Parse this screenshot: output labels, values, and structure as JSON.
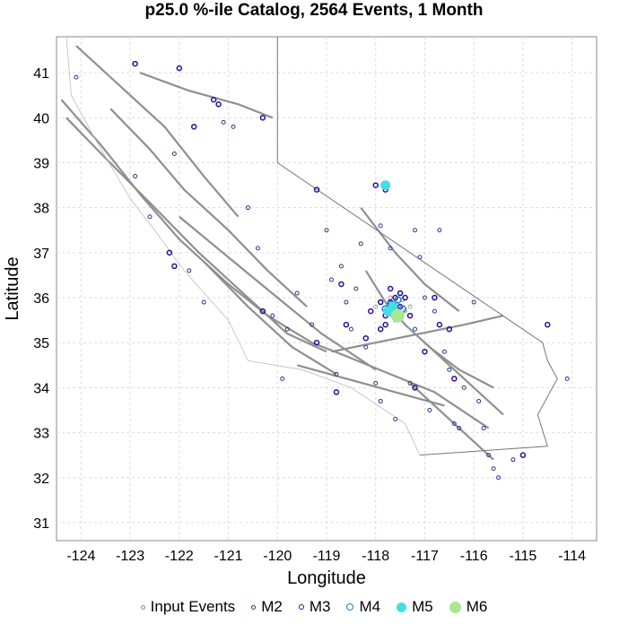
{
  "chart_data": {
    "type": "scatter",
    "title": "p25.0 %-ile Catalog, 2564 Events, 1 Month",
    "xlabel": "Longitude",
    "ylabel": "Latitude",
    "xlim": [
      -124.5,
      -113.5
    ],
    "ylim": [
      30.6,
      41.8
    ],
    "x_ticks": [
      -124,
      -123,
      -122,
      -121,
      -120,
      -119,
      -118,
      -117,
      -116,
      -115,
      -114
    ],
    "y_ticks": [
      31,
      32,
      33,
      34,
      35,
      36,
      37,
      38,
      39,
      40,
      41
    ],
    "grid": true,
    "legend_position": "bottom",
    "series": [
      {
        "name": "Input Events",
        "color": "#8a8a8a",
        "filled": false,
        "points": [
          [
            -117.7,
            35.8
          ],
          [
            -117.6,
            35.9
          ],
          [
            -117.8,
            35.7
          ],
          [
            -117.5,
            35.6
          ],
          [
            -117.65,
            35.75
          ],
          [
            -117.55,
            35.85
          ],
          [
            -117.7,
            36.0
          ],
          [
            -117.4,
            35.7
          ],
          [
            -117.9,
            35.9
          ],
          [
            -117.6,
            35.5
          ],
          [
            -117.3,
            35.8
          ],
          [
            -117.5,
            36.1
          ],
          [
            -117.75,
            35.65
          ],
          [
            -118.0,
            35.8
          ],
          [
            -117.45,
            35.95
          ]
        ]
      },
      {
        "name": "M2",
        "color": "#1f3d8c",
        "filled": false,
        "points": [
          [
            -124.1,
            40.9
          ],
          [
            -122.9,
            38.7
          ],
          [
            -122.6,
            37.8
          ],
          [
            -122.1,
            39.2
          ],
          [
            -121.5,
            35.9
          ],
          [
            -121.1,
            39.9
          ],
          [
            -120.9,
            39.8
          ],
          [
            -120.4,
            37.1
          ],
          [
            -120.1,
            35.6
          ],
          [
            -119.8,
            35.3
          ],
          [
            -119.6,
            36.1
          ],
          [
            -119.3,
            35.4
          ],
          [
            -119.0,
            37.5
          ],
          [
            -118.9,
            36.4
          ],
          [
            -118.7,
            36.7
          ],
          [
            -118.6,
            35.9
          ],
          [
            -118.4,
            36.2
          ],
          [
            -118.3,
            37.2
          ],
          [
            -118.2,
            34.9
          ],
          [
            -118.0,
            34.1
          ],
          [
            -117.9,
            37.6
          ],
          [
            -117.7,
            37.1
          ],
          [
            -117.2,
            37.5
          ],
          [
            -117.1,
            36.9
          ],
          [
            -117.0,
            36.0
          ],
          [
            -116.8,
            35.7
          ],
          [
            -116.7,
            37.5
          ],
          [
            -116.6,
            34.8
          ],
          [
            -116.5,
            34.4
          ],
          [
            -116.3,
            33.1
          ],
          [
            -116.2,
            34.0
          ],
          [
            -116.0,
            35.9
          ],
          [
            -115.9,
            33.7
          ],
          [
            -115.8,
            33.1
          ],
          [
            -115.7,
            32.5
          ],
          [
            -115.6,
            32.2
          ],
          [
            -115.5,
            32.0
          ],
          [
            -115.2,
            32.4
          ],
          [
            -114.1,
            34.2
          ],
          [
            -117.3,
            34.1
          ],
          [
            -117.6,
            33.3
          ],
          [
            -118.8,
            34.3
          ],
          [
            -120.6,
            38.0
          ],
          [
            -121.8,
            36.6
          ],
          [
            -119.9,
            34.2
          ],
          [
            -116.9,
            33.5
          ],
          [
            -117.9,
            33.7
          ],
          [
            -118.5,
            35.3
          ],
          [
            -117.2,
            35.3
          ],
          [
            -116.4,
            33.2
          ]
        ]
      },
      {
        "name": "M3",
        "color": "#2a0f9a",
        "filled": false,
        "points": [
          [
            -122.9,
            41.2
          ],
          [
            -122.0,
            41.1
          ],
          [
            -121.3,
            40.4
          ],
          [
            -121.2,
            40.3
          ],
          [
            -120.3,
            40.0
          ],
          [
            -121.7,
            39.8
          ],
          [
            -122.2,
            37.0
          ],
          [
            -122.1,
            36.7
          ],
          [
            -119.2,
            38.4
          ],
          [
            -118.0,
            38.5
          ],
          [
            -117.8,
            38.4
          ],
          [
            -117.7,
            35.9
          ],
          [
            -117.6,
            35.7
          ],
          [
            -117.8,
            35.6
          ],
          [
            -117.5,
            35.8
          ],
          [
            -117.9,
            35.9
          ],
          [
            -117.4,
            36.0
          ],
          [
            -117.7,
            36.2
          ],
          [
            -117.3,
            35.6
          ],
          [
            -118.1,
            35.7
          ],
          [
            -117.5,
            36.1
          ],
          [
            -118.2,
            35.1
          ],
          [
            -118.6,
            35.4
          ],
          [
            -120.3,
            35.7
          ],
          [
            -119.2,
            35.0
          ],
          [
            -116.8,
            36.0
          ],
          [
            -116.7,
            35.4
          ],
          [
            -116.5,
            35.3
          ],
          [
            -117.0,
            34.8
          ],
          [
            -118.7,
            36.3
          ],
          [
            -117.2,
            34.0
          ],
          [
            -116.4,
            34.2
          ],
          [
            -115.0,
            32.5
          ],
          [
            -114.5,
            35.4
          ],
          [
            -118.8,
            33.9
          ],
          [
            -117.8,
            35.4
          ],
          [
            -117.6,
            36.0
          ],
          [
            -117.9,
            35.3
          ]
        ]
      },
      {
        "name": "M4",
        "color": "#1e7fd0",
        "filled": false,
        "points": [
          [
            -117.7,
            35.85
          ],
          [
            -117.8,
            35.75
          ],
          [
            -117.55,
            35.95
          ],
          [
            -117.65,
            35.65
          ],
          [
            -117.45,
            35.75
          ]
        ]
      },
      {
        "name": "M5",
        "color": "#3fe0e0",
        "filled": true,
        "points": [
          [
            -117.8,
            38.5
          ],
          [
            -117.65,
            35.8
          ],
          [
            -117.75,
            35.7
          ]
        ]
      },
      {
        "name": "M6",
        "color": "#a8e890",
        "filled": true,
        "points": [
          [
            -117.55,
            35.6
          ]
        ]
      }
    ]
  }
}
